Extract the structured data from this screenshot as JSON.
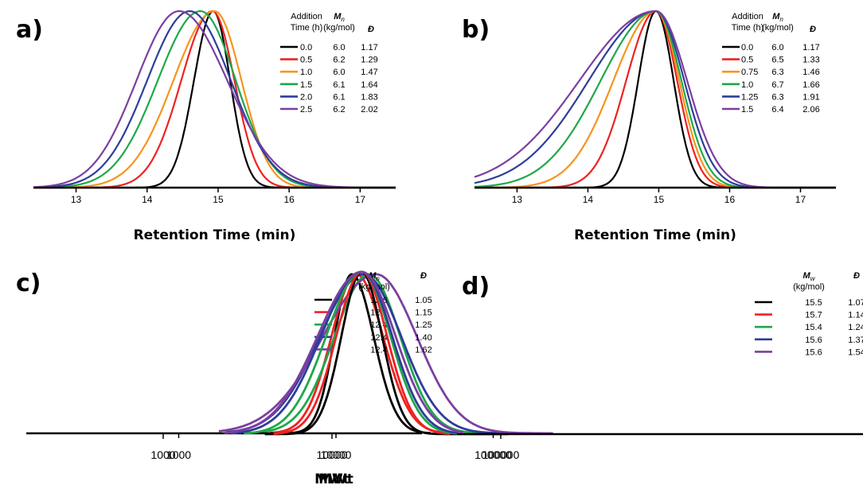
{
  "chart_data": [
    {
      "panel": "a)",
      "type": "line",
      "xlabel": "Retention Time (min)",
      "ylabel": "",
      "xlim": [
        12.4,
        17.5
      ],
      "x_ticks": [
        "13",
        "14",
        "15",
        "16",
        "17"
      ],
      "legend": {
        "placement": "top-right",
        "headers": [
          "Addition\nTime (h)",
          "M_n\n(kg/mol)",
          "Đ"
        ],
        "rows": [
          {
            "label": "0.0",
            "mn": "6.0",
            "d": "1.17"
          },
          {
            "label": "0.5",
            "mn": "6.2",
            "d": "1.29"
          },
          {
            "label": "1.0",
            "mn": "6.0",
            "d": "1.47"
          },
          {
            "label": "1.5",
            "mn": "6.1",
            "d": "1.64"
          },
          {
            "label": "2.0",
            "mn": "6.1",
            "d": "1.83"
          },
          {
            "label": "2.5",
            "mn": "6.2",
            "d": "2.02"
          }
        ]
      },
      "series": [
        {
          "name": "0.0",
          "color": "#000000",
          "peak": 14.93,
          "sl": 0.27,
          "sr": 0.24
        },
        {
          "name": "0.5",
          "color": "#ee2222",
          "peak": 14.92,
          "sl": 0.44,
          "sr": 0.31
        },
        {
          "name": "1.0",
          "color": "#f7941d",
          "peak": 14.95,
          "sl": 0.58,
          "sr": 0.38
        },
        {
          "name": "1.5",
          "color": "#1ea84a",
          "peak": 14.75,
          "sl": 0.6,
          "sr": 0.5
        },
        {
          "name": "2.0",
          "color": "#2e3d9a",
          "peak": 14.6,
          "sl": 0.6,
          "sr": 0.58
        },
        {
          "name": "2.5",
          "color": "#7b3fa0",
          "peak": 14.45,
          "sl": 0.6,
          "sr": 0.68
        }
      ]
    },
    {
      "panel": "b)",
      "type": "line",
      "xlabel": "Retention Time (min)",
      "ylabel": "",
      "xlim": [
        12.4,
        17.5
      ],
      "x_ticks": [
        "13",
        "14",
        "15",
        "16",
        "17"
      ],
      "legend": {
        "placement": "top-right",
        "headers": [
          "Addition\nTime (h)",
          "M_n\n(kg/mol)",
          "Đ"
        ],
        "rows": [
          {
            "label": "0.0",
            "mn": "6.0",
            "d": "1.17"
          },
          {
            "label": "0.5",
            "mn": "6.5",
            "d": "1.33"
          },
          {
            "label": "0.75",
            "mn": "6.3",
            "d": "1.46"
          },
          {
            "label": "1.0",
            "mn": "6.7",
            "d": "1.66"
          },
          {
            "label": "1.25",
            "mn": "6.3",
            "d": "1.91"
          },
          {
            "label": "1.5",
            "mn": "6.4",
            "d": "2.06"
          }
        ]
      },
      "series": [
        {
          "name": "0.0",
          "color": "#000000",
          "peak": 14.96,
          "sl": 0.25,
          "sr": 0.25
        },
        {
          "name": "0.5",
          "color": "#ee2222",
          "peak": 14.96,
          "sl": 0.42,
          "sr": 0.3
        },
        {
          "name": "0.75",
          "color": "#f7941d",
          "peak": 14.96,
          "sl": 0.6,
          "sr": 0.33
        },
        {
          "name": "1.0",
          "color": "#1ea84a",
          "peak": 14.96,
          "sl": 0.78,
          "sr": 0.36
        },
        {
          "name": "1.25",
          "color": "#2e3d9a",
          "peak": 14.96,
          "sl": 0.95,
          "sr": 0.4
        },
        {
          "name": "1.5",
          "color": "#7b3fa0",
          "peak": 14.96,
          "sl": 1.08,
          "sr": 0.44
        }
      ]
    },
    {
      "panel": "c)",
      "type": "line",
      "xlabel": "MWt",
      "ylabel": "",
      "x_scale": "log",
      "xlim": [
        1000,
        250000
      ],
      "x_ticks": [
        "1000",
        "10000",
        "100000"
      ],
      "legend": {
        "placement": "top-right",
        "headers": [
          "M_n\n(kg/mol)",
          "Đ"
        ],
        "rows": [
          {
            "mn": "12.6",
            "d": "1.05"
          },
          {
            "mn": "12.7",
            "d": "1.15"
          },
          {
            "mn": "12.4",
            "d": "1.25"
          },
          {
            "mn": "12.4",
            "d": "1.40"
          },
          {
            "mn": "12.4",
            "d": "1.62"
          }
        ]
      },
      "series": [
        {
          "color": "#000000",
          "peak": 12600,
          "sl": 0.11,
          "sr": 0.14,
          "x_range": [
            5000,
            40000
          ]
        },
        {
          "color": "#ee2222",
          "peak": 13500,
          "sl": 0.16,
          "sr": 0.17,
          "x_range": [
            3800,
            60000
          ]
        },
        {
          "color": "#1ea84a",
          "peak": 16200,
          "sl": 0.22,
          "sr": 0.2,
          "x_range": [
            2500,
            100000
          ]
        },
        {
          "color": "#2e3d9a",
          "peak": 15000,
          "sl": 0.28,
          "sr": 0.24,
          "x_range": [
            2000,
            150000
          ]
        },
        {
          "color": "#7b3fa0",
          "peak": 18000,
          "sl": 0.34,
          "sr": 0.26,
          "x_range": [
            1800,
            240000
          ]
        }
      ]
    },
    {
      "panel": "d)",
      "type": "line",
      "xlabel": "MWt",
      "ylabel": "",
      "x_scale": "log",
      "xlim": [
        1000,
        220000
      ],
      "x_ticks": [
        "1000",
        "10000",
        "100000"
      ],
      "legend": {
        "placement": "top-right",
        "headers": [
          "M_w\n(kg/mol)",
          "Đ"
        ],
        "rows": [
          {
            "mn": "15.5",
            "d": "1.07"
          },
          {
            "mn": "15.7",
            "d": "1.14"
          },
          {
            "mn": "15.4",
            "d": "1.24"
          },
          {
            "mn": "15.6",
            "d": "1.37"
          },
          {
            "mn": "15.6",
            "d": "1.54"
          }
        ]
      },
      "series": [
        {
          "color": "#000000",
          "peak": 15000,
          "sl": 0.12,
          "sr": 0.12,
          "x_range": [
            4000,
            110000
          ]
        },
        {
          "color": "#ee2222",
          "peak": 15000,
          "sl": 0.15,
          "sr": 0.15,
          "x_range": [
            4500,
            50000
          ]
        },
        {
          "color": "#1ea84a",
          "peak": 15000,
          "sl": 0.21,
          "sr": 0.17,
          "x_range": [
            3000,
            55000
          ]
        },
        {
          "color": "#2e3d9a",
          "peak": 15000,
          "sl": 0.24,
          "sr": 0.18,
          "x_range": [
            2500,
            55000
          ]
        },
        {
          "color": "#7b3fa0",
          "peak": 15000,
          "sl": 0.26,
          "sr": 0.2,
          "x_range": [
            2300,
            60000
          ]
        }
      ]
    }
  ]
}
